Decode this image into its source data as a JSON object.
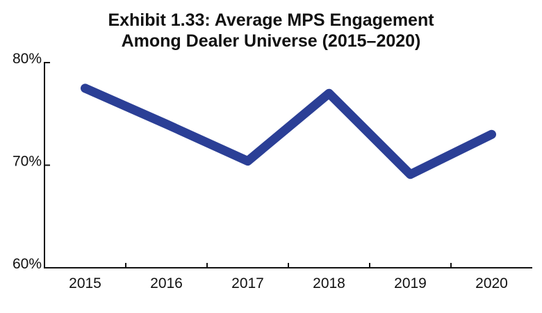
{
  "chart_data": {
    "type": "line",
    "title_lines": [
      "Exhibit 1.33: Average MPS Engagement",
      "Among Dealer Universe (2015–2020)"
    ],
    "xlabel": "",
    "ylabel": "",
    "categories": [
      "2015",
      "2016",
      "2017",
      "2018",
      "2019",
      "2020"
    ],
    "series": [
      {
        "values": [
          77.5,
          74.0,
          70.4,
          77.0,
          69.1,
          73.0
        ]
      }
    ],
    "ylim": [
      60,
      80
    ],
    "y_ticks": [
      60,
      70,
      80
    ],
    "y_tick_labels": [
      "60%",
      "70%",
      "80%"
    ],
    "grid": false,
    "line_color": "#2b3f96"
  }
}
